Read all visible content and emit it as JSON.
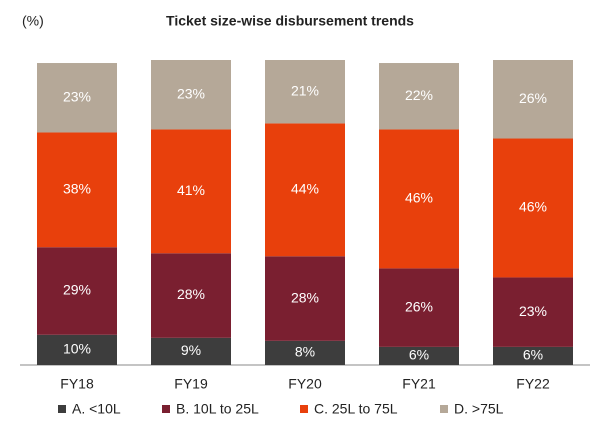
{
  "chart_data": {
    "type": "stacked_bar",
    "title": "Ticket size-wise disbursement trends",
    "y_label": "(%)",
    "categories": [
      "FY18",
      "FY19",
      "FY20",
      "FY21",
      "FY22"
    ],
    "series": [
      {
        "name": "A. <10L",
        "color": "#3d3d3d",
        "values": [
          10,
          9,
          8,
          6,
          6
        ],
        "value_labels": [
          "10%",
          "9%",
          "8%",
          "6%",
          "6%"
        ]
      },
      {
        "name": "B. 10L to 25L",
        "color": "#7a1f30",
        "values": [
          29,
          28,
          28,
          26,
          23
        ],
        "value_labels": [
          "29%",
          "28%",
          "28%",
          "26%",
          "23%"
        ]
      },
      {
        "name": "C. 25L to 75L",
        "color": "#e8400c",
        "values": [
          38,
          41,
          44,
          46,
          46
        ],
        "value_labels": [
          "38%",
          "41%",
          "44%",
          "46%",
          "46%"
        ]
      },
      {
        "name": "D. >75L",
        "color": "#b5a898",
        "values": [
          23,
          23,
          21,
          22,
          26
        ],
        "value_labels": [
          "23%",
          "23%",
          "21%",
          "22%",
          "26%"
        ]
      }
    ],
    "ylim": [
      0,
      101
    ]
  }
}
